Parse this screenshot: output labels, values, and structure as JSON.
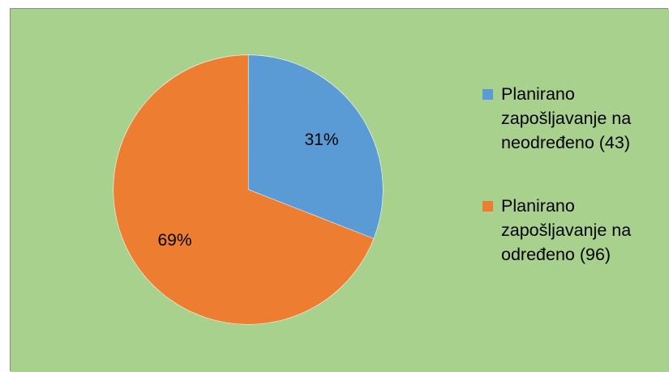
{
  "background_color": "#a9d18e",
  "chart_data": {
    "type": "pie",
    "title": "",
    "slices": [
      {
        "label": "Planirano zapošljavanje na neodređeno (43)",
        "value": 43,
        "percent_label": "31%",
        "color": "#5b9bd5"
      },
      {
        "label": "Planirano zapošljavanje na određeno (96)",
        "value": 96,
        "percent_label": "69%",
        "color": "#ed7d31"
      }
    ],
    "start_angle_deg": 0,
    "direction": "clockwise",
    "legend_position": "right",
    "legend": [
      {
        "lines": [
          "Planirano",
          "zapošljavanje na",
          "neodređeno (43)"
        ],
        "color": "#5b9bd5"
      },
      {
        "lines": [
          "Planirano",
          "zapošljavanje na",
          "određeno (96)"
        ],
        "color": "#ed7d31"
      }
    ]
  }
}
